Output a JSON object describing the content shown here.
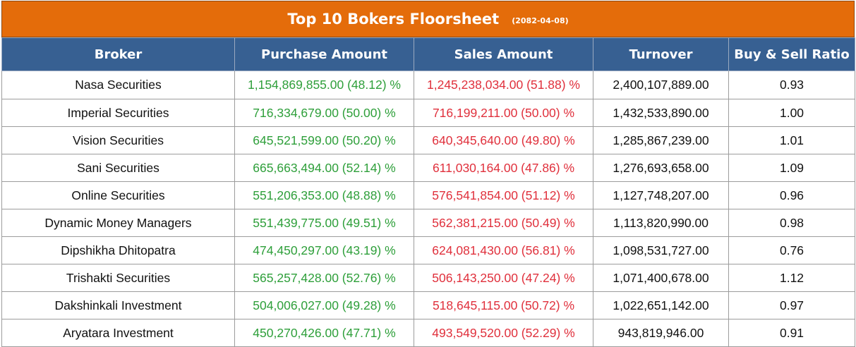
{
  "title": "Top 10 Bokers Floorsheet",
  "date": "(2082-04-08)",
  "colors": {
    "title_bg": "#E46C0A",
    "header_bg": "#376092",
    "purchase_text": "#2E9F3A",
    "sales_text": "#E0303C"
  },
  "headers": [
    "Broker",
    "Purchase Amount",
    "Sales Amount",
    "Turnover",
    "Buy & Sell Ratio"
  ],
  "rows": [
    {
      "broker": "Nasa Securities",
      "purchase": "1,154,869,855.00 (48.12) %",
      "sales": "1,245,238,034.00 (51.88) %",
      "turnover": "2,400,107,889.00",
      "ratio": "0.93"
    },
    {
      "broker": "Imperial Securities",
      "purchase": "716,334,679.00 (50.00) %",
      "sales": "716,199,211.00 (50.00) %",
      "turnover": "1,432,533,890.00",
      "ratio": "1.00"
    },
    {
      "broker": "Vision Securities",
      "purchase": "645,521,599.00 (50.20) %",
      "sales": "640,345,640.00 (49.80) %",
      "turnover": "1,285,867,239.00",
      "ratio": "1.01"
    },
    {
      "broker": "Sani Securities",
      "purchase": "665,663,494.00 (52.14) %",
      "sales": "611,030,164.00 (47.86) %",
      "turnover": "1,276,693,658.00",
      "ratio": "1.09"
    },
    {
      "broker": "Online Securities",
      "purchase": "551,206,353.00 (48.88) %",
      "sales": "576,541,854.00 (51.12) %",
      "turnover": "1,127,748,207.00",
      "ratio": "0.96"
    },
    {
      "broker": "Dynamic Money Managers",
      "purchase": "551,439,775.00 (49.51) %",
      "sales": "562,381,215.00 (50.49) %",
      "turnover": "1,113,820,990.00",
      "ratio": "0.98"
    },
    {
      "broker": "Dipshikha Dhitopatra",
      "purchase": "474,450,297.00 (43.19) %",
      "sales": "624,081,430.00 (56.81) %",
      "turnover": "1,098,531,727.00",
      "ratio": "0.76"
    },
    {
      "broker": "Trishakti Securities",
      "purchase": "565,257,428.00 (52.76) %",
      "sales": "506,143,250.00 (47.24) %",
      "turnover": "1,071,400,678.00",
      "ratio": "1.12"
    },
    {
      "broker": "Dakshinkali Investment",
      "purchase": "504,006,027.00 (49.28) %",
      "sales": "518,645,115.00 (50.72) %",
      "turnover": "1,022,651,142.00",
      "ratio": "0.97"
    },
    {
      "broker": "Aryatara Investment",
      "purchase": "450,270,426.00 (47.71) %",
      "sales": "493,549,520.00 (52.29) %",
      "turnover": "943,819,946.00",
      "ratio": "0.91"
    }
  ],
  "chart_data": {
    "type": "table",
    "title": "Top 10 Bokers Floorsheet",
    "subtitle": "(2082-04-08)",
    "columns": [
      "Broker",
      "Purchase Amount",
      "Sales Amount",
      "Turnover",
      "Buy & Sell Ratio"
    ],
    "categories": [
      "Nasa Securities",
      "Imperial Securities",
      "Vision Securities",
      "Sani Securities",
      "Online Securities",
      "Dynamic Money Managers",
      "Dipshikha Dhitopatra",
      "Trishakti Securities",
      "Dakshinkali Investment",
      "Aryatara Investment"
    ],
    "series": [
      {
        "name": "Purchase Amount",
        "values": [
          1154869855.0,
          716334679.0,
          645521599.0,
          665663494.0,
          551206353.0,
          551439775.0,
          474450297.0,
          565257428.0,
          504006027.0,
          450270426.0
        ],
        "percent": [
          48.12,
          50.0,
          50.2,
          52.14,
          48.88,
          49.51,
          43.19,
          52.76,
          49.28,
          47.71
        ]
      },
      {
        "name": "Sales Amount",
        "values": [
          1245238034.0,
          716199211.0,
          640345640.0,
          611030164.0,
          576541854.0,
          562381215.0,
          624081430.0,
          506143250.0,
          518645115.0,
          493549520.0
        ],
        "percent": [
          51.88,
          50.0,
          49.8,
          47.86,
          51.12,
          50.49,
          56.81,
          47.24,
          50.72,
          52.29
        ]
      },
      {
        "name": "Turnover",
        "values": [
          2400107889.0,
          1432533890.0,
          1285867239.0,
          1276693658.0,
          1127748207.0,
          1113820990.0,
          1098531727.0,
          1071400678.0,
          1022651142.0,
          943819946.0
        ]
      },
      {
        "name": "Buy & Sell Ratio",
        "values": [
          0.93,
          1.0,
          1.01,
          1.09,
          0.96,
          0.98,
          0.76,
          1.12,
          0.97,
          0.91
        ]
      }
    ]
  }
}
